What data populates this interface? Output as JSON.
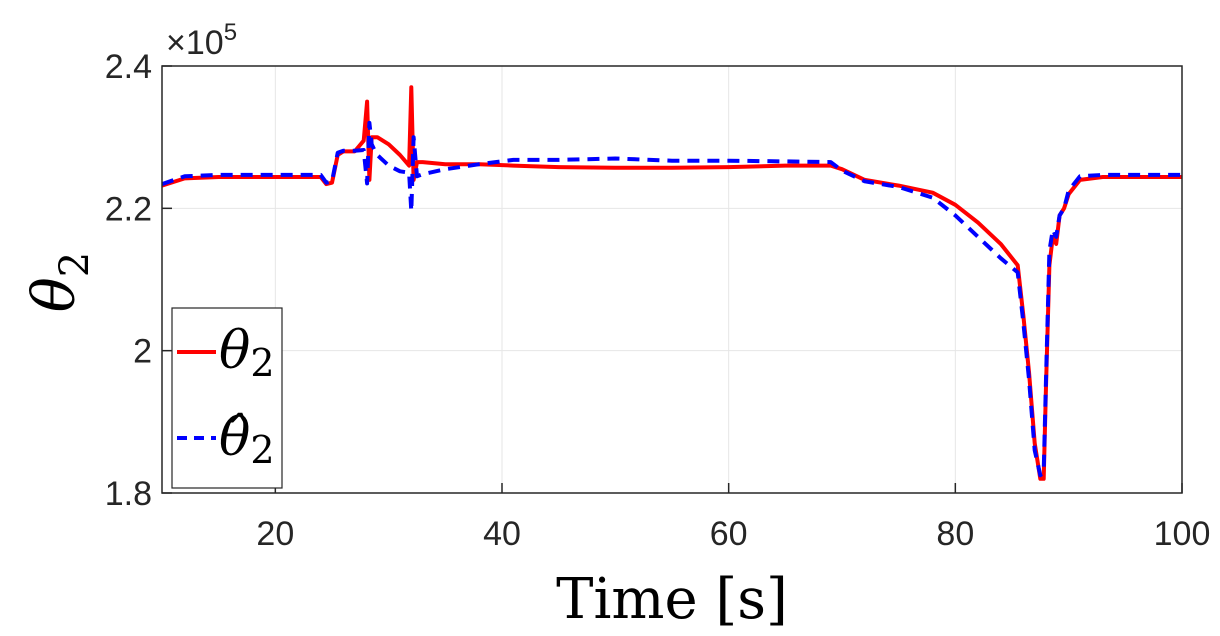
{
  "chart_data": {
    "type": "line",
    "title": "",
    "xlabel": "Time [s]",
    "ylabel": "θ",
    "ylabel_sub": "2",
    "exponent_label": "×10",
    "exponent_power": "5",
    "xlim": [
      10,
      100
    ],
    "ylim": [
      1.8,
      2.4
    ],
    "xticks": [
      20,
      40,
      60,
      80,
      100
    ],
    "xtick_labels": [
      "20",
      "40",
      "60",
      "80",
      "100"
    ],
    "yticks": [
      1.8,
      2.0,
      2.2,
      2.4
    ],
    "ytick_labels": [
      "1.8",
      "2",
      "2.2",
      "2.4"
    ],
    "grid": true,
    "legend_position": "bottom-left",
    "series": [
      {
        "name": "θ2",
        "legend_symbol": "θ",
        "legend_sub": "2",
        "color": "#ff0000",
        "style": "solid",
        "x": [
          10,
          12,
          15,
          20,
          24,
          24.5,
          25,
          25.5,
          26,
          27,
          27.8,
          28.1,
          28.3,
          28.5,
          28.8,
          29,
          30,
          31,
          31.8,
          32,
          32.2,
          32.5,
          33,
          35,
          38,
          41,
          45,
          50,
          55,
          60,
          65,
          69,
          70,
          72,
          75,
          78,
          80,
          82,
          84,
          85.5,
          86,
          86.5,
          87,
          87.5,
          87.8,
          88,
          88.3,
          88.6,
          88.9,
          89.2,
          89.6,
          90,
          91,
          93,
          96,
          100
        ],
        "y": [
          2.232,
          2.242,
          2.244,
          2.244,
          2.244,
          2.234,
          2.236,
          2.275,
          2.28,
          2.28,
          2.295,
          2.35,
          2.24,
          2.3,
          2.3,
          2.3,
          2.29,
          2.275,
          2.26,
          2.37,
          2.24,
          2.265,
          2.265,
          2.262,
          2.262,
          2.26,
          2.258,
          2.257,
          2.257,
          2.258,
          2.26,
          2.26,
          2.255,
          2.24,
          2.232,
          2.222,
          2.205,
          2.18,
          2.15,
          2.12,
          2.05,
          1.97,
          1.87,
          1.82,
          1.82,
          1.95,
          2.12,
          2.16,
          2.15,
          2.19,
          2.2,
          2.22,
          2.24,
          2.244,
          2.244,
          2.244
        ]
      },
      {
        "name": "θ̂2",
        "legend_symbol": "θ̂",
        "legend_sub": "2",
        "color": "#0000ff",
        "style": "dashed",
        "x": [
          10,
          12,
          15,
          20,
          24,
          24.5,
          25,
          25.5,
          26,
          27,
          27.8,
          28.1,
          28.3,
          28.5,
          28.8,
          29,
          30,
          31,
          31.8,
          32,
          32.2,
          32.5,
          33,
          35,
          38,
          41,
          45,
          50,
          55,
          60,
          65,
          69,
          70,
          72,
          75,
          78,
          80,
          82,
          84,
          85.5,
          86,
          86.5,
          87,
          87.5,
          87.8,
          88,
          88.3,
          88.6,
          88.9,
          89.2,
          89.6,
          90,
          91,
          93,
          96,
          100
        ],
        "y": [
          2.234,
          2.245,
          2.247,
          2.247,
          2.247,
          2.236,
          2.238,
          2.278,
          2.281,
          2.281,
          2.282,
          2.235,
          2.32,
          2.29,
          2.28,
          2.275,
          2.26,
          2.252,
          2.25,
          2.196,
          2.3,
          2.245,
          2.248,
          2.255,
          2.262,
          2.268,
          2.268,
          2.27,
          2.267,
          2.267,
          2.266,
          2.265,
          2.253,
          2.238,
          2.23,
          2.215,
          2.19,
          2.16,
          2.13,
          2.11,
          2.04,
          1.96,
          1.86,
          1.825,
          1.83,
          1.96,
          2.14,
          2.17,
          2.16,
          2.19,
          2.2,
          2.225,
          2.245,
          2.247,
          2.247,
          2.247
        ]
      }
    ]
  }
}
